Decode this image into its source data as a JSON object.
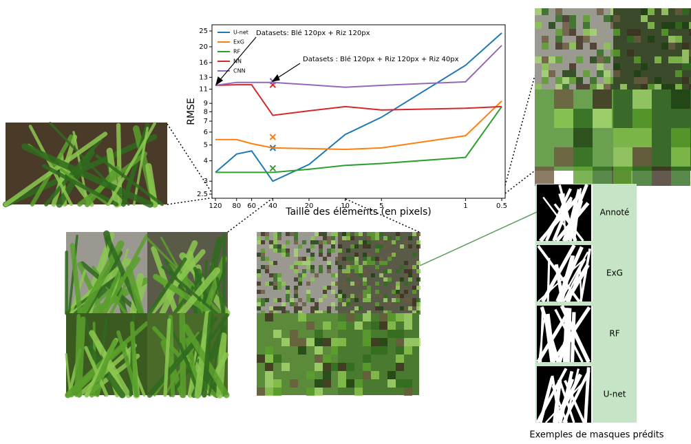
{
  "chart_data": {
    "type": "line",
    "x": [
      120,
      80,
      60,
      40,
      20,
      10,
      5,
      1,
      0.5
    ],
    "xlim": [
      120,
      0.5
    ],
    "xticks": [
      120,
      80,
      60,
      40,
      20,
      10,
      5,
      1,
      0.5
    ],
    "xscale": "log",
    "ylim": [
      2.5,
      25
    ],
    "yticks": [
      2.5,
      3,
      4,
      5,
      6,
      7,
      8,
      9,
      11,
      13,
      16,
      20,
      25
    ],
    "yscale": "log",
    "xlabel": "Taille des éléments (en pixels)",
    "ylabel": "RMSE",
    "legend": "upper left",
    "series": [
      {
        "name": "U-net",
        "color": "#1f77b4",
        "values": [
          3.4,
          4.4,
          4.6,
          3.0,
          3.8,
          5.8,
          7.4,
          15.4,
          24.3
        ],
        "cross": 4.8
      },
      {
        "name": "ExG",
        "color": "#ff7f0e",
        "values": [
          5.4,
          5.4,
          5.1,
          4.8,
          4.75,
          4.7,
          4.8,
          5.7,
          9.3
        ],
        "cross": 5.6
      },
      {
        "name": "RF",
        "color": "#2ca02c",
        "values": [
          3.4,
          3.4,
          3.4,
          3.4,
          3.55,
          3.75,
          3.85,
          4.2,
          8.6
        ],
        "cross": 3.6
      },
      {
        "name": "NN",
        "color": "#d62728",
        "values": [
          11.6,
          11.7,
          11.7,
          7.6,
          8.1,
          8.6,
          8.2,
          8.4,
          8.6
        ],
        "cross": 11.7
      },
      {
        "name": "CNN",
        "color": "#9467bd",
        "values": [
          11.6,
          12.1,
          12.1,
          12.1,
          11.7,
          11.3,
          11.6,
          12.2,
          20.4
        ],
        "cross": 12.3
      }
    ],
    "cross_x": 40,
    "annotations": [
      "Datasets: Blé 120px + Riz 120px",
      "Datasets : Blé 120px + Riz 120px + Riz 40px"
    ]
  },
  "masks": {
    "labels": [
      "Annoté",
      "ExG",
      "RF",
      "U-net"
    ],
    "caption": "Exemples de masques prédits"
  }
}
